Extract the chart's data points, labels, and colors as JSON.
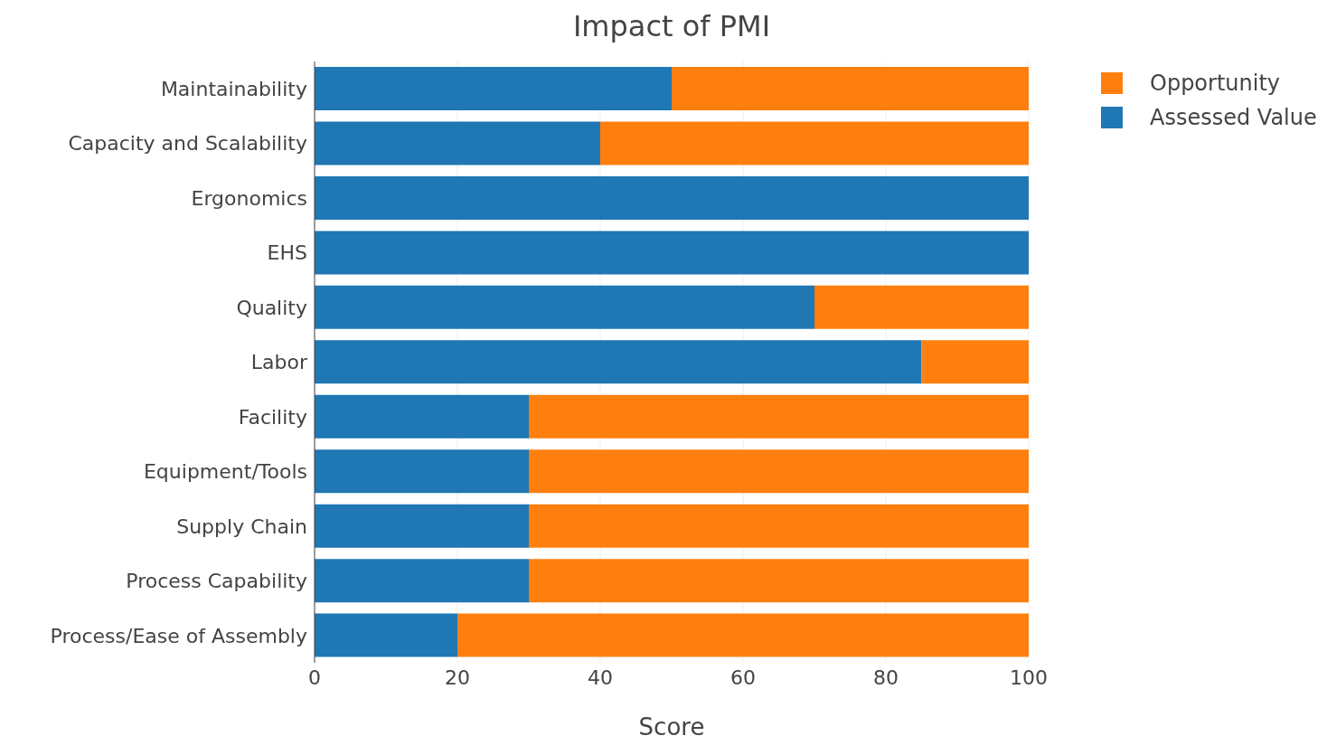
{
  "chart_data": {
    "type": "bar",
    "title": "Impact of PMI",
    "xlabel": "Score",
    "orientation": "horizontal",
    "stacked": true,
    "categories": [
      "Maintainability",
      "Capacity and Scalability",
      "Ergonomics",
      "EHS",
      "Quality",
      "Labor",
      "Facility",
      "Equipment/Tools",
      "Supply Chain",
      "Process Capability",
      "Process/Ease of Assembly"
    ],
    "series": [
      {
        "name": "Assessed Value",
        "color": "#1f77b4",
        "values": [
          50,
          40,
          100,
          100,
          70,
          85,
          30,
          30,
          30,
          30,
          20
        ]
      },
      {
        "name": "Opportunity",
        "color": "#ff7f0e",
        "values": [
          50,
          60,
          0,
          0,
          30,
          15,
          70,
          70,
          70,
          70,
          80
        ]
      }
    ],
    "xlim": [
      0,
      100
    ],
    "xticks": [
      0,
      20,
      40,
      60,
      80,
      100
    ],
    "grid": "x",
    "legend": "top right"
  }
}
